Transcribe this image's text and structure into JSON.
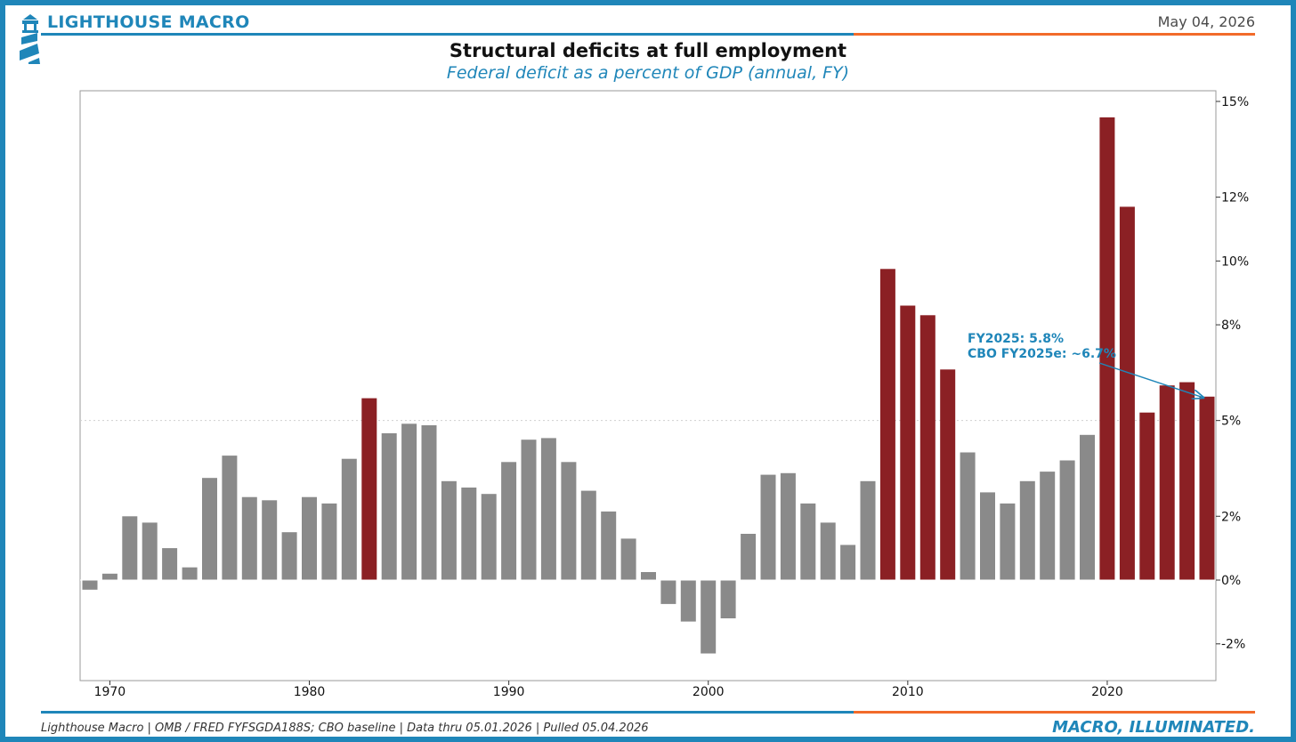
{
  "header": {
    "brand": "LIGHTHOUSE MACRO",
    "date": "May 04, 2026"
  },
  "footer": {
    "source": "Lighthouse Macro | OMB / FRED FYFSGDA188S; CBO baseline | Data thru 05.01.2026 | Pulled 05.04.2026",
    "tagline": "MACRO, ILLUMINATED."
  },
  "colors": {
    "accent_blue": "#1f86b9",
    "accent_orange": "#f26b2a",
    "bar_normal": "#8a8a8a",
    "bar_highlight": "#8b2024"
  },
  "chart_data": {
    "type": "bar",
    "title": "Structural deficits at full employment",
    "subtitle": "Federal deficit as a percent of GDP (annual, FY)",
    "xlabel": "",
    "ylabel": "",
    "y_axis_position": "right",
    "ylim": [
      -2.5,
      15.3
    ],
    "y_ticks": [
      -2,
      0,
      2,
      5,
      8,
      10,
      12,
      15
    ],
    "y_tick_labels": [
      "-2%",
      "0%",
      "2%",
      "5%",
      "8%",
      "10%",
      "12%",
      "15%"
    ],
    "reference_line": 5,
    "x_ticks": [
      1970,
      1980,
      1990,
      2000,
      2010,
      2020
    ],
    "x_tick_labels": [
      "1970",
      "1980",
      "1990",
      "2000",
      "2010",
      "2020"
    ],
    "categories": [
      1969,
      1970,
      1971,
      1972,
      1973,
      1974,
      1975,
      1976,
      1977,
      1978,
      1979,
      1980,
      1981,
      1982,
      1983,
      1984,
      1985,
      1986,
      1987,
      1988,
      1989,
      1990,
      1991,
      1992,
      1993,
      1994,
      1995,
      1996,
      1997,
      1998,
      1999,
      2000,
      2001,
      2002,
      2003,
      2004,
      2005,
      2006,
      2007,
      2008,
      2009,
      2010,
      2011,
      2012,
      2013,
      2014,
      2015,
      2016,
      2017,
      2018,
      2019,
      2020,
      2021,
      2022,
      2023,
      2024,
      2025
    ],
    "values": [
      -0.3,
      0.2,
      2.0,
      1.8,
      1.0,
      0.4,
      3.2,
      3.9,
      2.6,
      2.5,
      1.5,
      2.6,
      2.4,
      3.8,
      5.7,
      4.6,
      4.9,
      4.85,
      3.1,
      2.9,
      2.7,
      3.7,
      4.4,
      4.45,
      3.7,
      2.8,
      2.15,
      1.3,
      0.25,
      -0.75,
      -1.3,
      -2.3,
      -1.2,
      1.45,
      3.3,
      3.35,
      2.4,
      1.8,
      1.1,
      3.1,
      9.75,
      8.6,
      8.3,
      6.6,
      4.0,
      2.75,
      2.4,
      3.1,
      3.4,
      3.75,
      4.55,
      14.5,
      11.7,
      5.25,
      6.1,
      6.2,
      5.75
    ],
    "highlight": [
      false,
      false,
      false,
      false,
      false,
      false,
      false,
      false,
      false,
      false,
      false,
      false,
      false,
      false,
      true,
      false,
      false,
      false,
      false,
      false,
      false,
      false,
      false,
      false,
      false,
      false,
      false,
      false,
      false,
      false,
      false,
      false,
      false,
      false,
      false,
      false,
      false,
      false,
      false,
      false,
      true,
      true,
      true,
      true,
      false,
      false,
      false,
      false,
      false,
      false,
      false,
      true,
      true,
      true,
      true,
      true,
      true
    ],
    "annotation": {
      "lines": [
        "FY2025: 5.8%",
        "CBO FY2025e: ~6.7%"
      ],
      "target_year": 2025,
      "target_value": 5.8
    },
    "legend": "none",
    "grid": false
  }
}
